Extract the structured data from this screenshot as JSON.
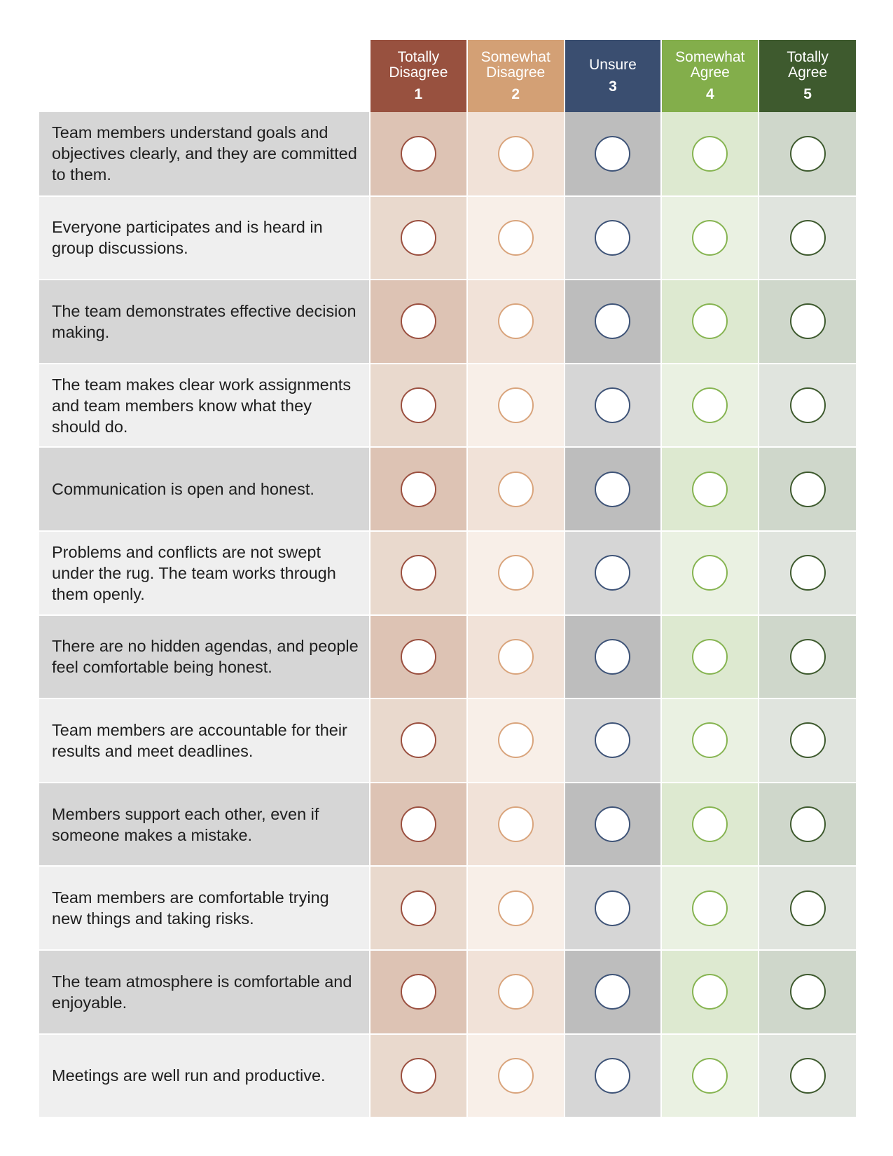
{
  "scale": [
    {
      "lines": [
        "Totally",
        "Disagree"
      ],
      "number": "1",
      "color": "#98513f"
    },
    {
      "lines": [
        "Somewhat",
        "Disagree"
      ],
      "number": "2",
      "color": "#d3a075"
    },
    {
      "lines": [
        "Unsure"
      ],
      "number": "3",
      "color": "#3a4e70"
    },
    {
      "lines": [
        "Somewhat",
        "Agree"
      ],
      "number": "4",
      "color": "#83ae4b"
    },
    {
      "lines": [
        "Totally",
        "Agree"
      ],
      "number": "5",
      "color": "#3e5a2e"
    }
  ],
  "questions": [
    "Team members understand goals and objectives clearly, and they are committed to them.",
    "Everyone participates and is heard in group discussions.",
    "The team demonstrates effective decision making.",
    "The team makes clear work assignments and team members know what they should do.",
    "Communication is open and honest.",
    "Problems and conflicts are not swept under the rug. The team works through them openly.",
    "There are no hidden agendas, and people feel comfortable being honest.",
    "Team members are accountable for their results and meet deadlines.",
    "Members support each other, even if someone makes a mistake.",
    "Team members are comfortable trying new things and taking risks.",
    "The team atmosphere is comfortable and enjoyable.",
    "Meetings are well run and productive."
  ]
}
